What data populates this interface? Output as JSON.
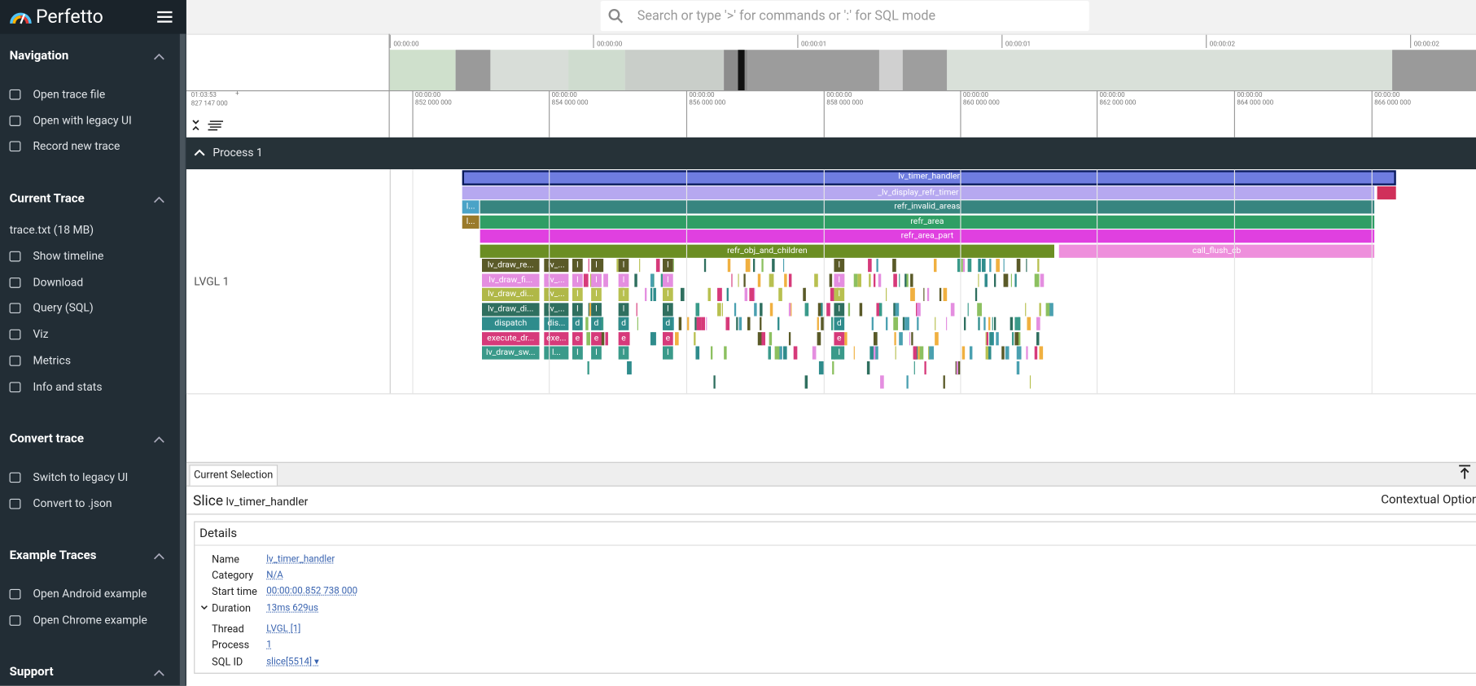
{
  "sidebar": {
    "brand": "Perfetto",
    "sections": [
      {
        "title": "Navigation",
        "items": [
          "Open trace file",
          "Open with legacy UI",
          "Record new trace"
        ]
      },
      {
        "title": "Current Trace",
        "file": "trace.txt (18 MB)",
        "items": [
          "Show timeline",
          "Download",
          "Query (SQL)",
          "Viz",
          "Metrics",
          "Info and stats"
        ]
      },
      {
        "title": "Convert trace",
        "items": [
          "Switch to legacy UI",
          "Convert to .json"
        ]
      },
      {
        "title": "Example Traces",
        "items": [
          "Open Android example",
          "Open Chrome example"
        ]
      },
      {
        "title": "Support",
        "items": []
      }
    ]
  },
  "search_placeholder": "Search or type '>' for commands or ':' for SQL mode",
  "overview_ticks": [
    "00:00:00",
    "00:00:00",
    "00:00:01",
    "00:00:01",
    "00:00:02",
    "00:00:02"
  ],
  "time_ruler": {
    "offset_time": "01:03:53",
    "plus": "+",
    "offset_ns": "827 147 000",
    "ticks": [
      {
        "time": "00:00:00",
        "ns": "852 000 000"
      },
      {
        "time": "00:00:00",
        "ns": "854 000 000"
      },
      {
        "time": "00:00:00",
        "ns": "856 000 000"
      },
      {
        "time": "00:00:00",
        "ns": "858 000 000"
      },
      {
        "time": "00:00:00",
        "ns": "860 000 000"
      },
      {
        "time": "00:00:00",
        "ns": "862 000 000"
      },
      {
        "time": "00:00:00",
        "ns": "864 000 000"
      },
      {
        "time": "00:00:00",
        "ns": "866 000 000"
      }
    ]
  },
  "process": "Process 1",
  "thread": "LVGL 1",
  "slices": [
    "lv_timer_handler",
    "_lv_display_refr_timer",
    "refr_invalid_areas",
    "refr_area",
    "refr_area_part",
    "refr_obj_and_children",
    "call_flush_cb",
    "l...",
    "l...",
    "lv_draw_re...",
    "lv_draw_fi...",
    "lv_draw_di...",
    "lv_draw_di...",
    "dispatch",
    "execute_dr...",
    "lv_draw_sw...",
    "lv_...",
    "lv_...",
    "lv_...",
    "lv_...",
    "dis...",
    "exe...",
    "l..."
  ],
  "small_slices": [
    "l",
    "l",
    "l",
    "l",
    "d",
    "e",
    "l"
  ],
  "details": {
    "tab": "Current Selection",
    "kind": "Slice",
    "name": "lv_timer_handler",
    "contextual": "Contextual Options",
    "heading": "Details",
    "rows": [
      [
        "Name",
        "lv_timer_handler"
      ],
      [
        "Category",
        "N/A"
      ],
      [
        "Start time",
        "00:00:00.852 738 000"
      ],
      [
        "Duration",
        "13ms 629us"
      ],
      [
        "Thread",
        "LVGL [1]"
      ],
      [
        "Process",
        "1"
      ],
      [
        "SQL ID",
        "slice[5514] ▾"
      ]
    ]
  }
}
